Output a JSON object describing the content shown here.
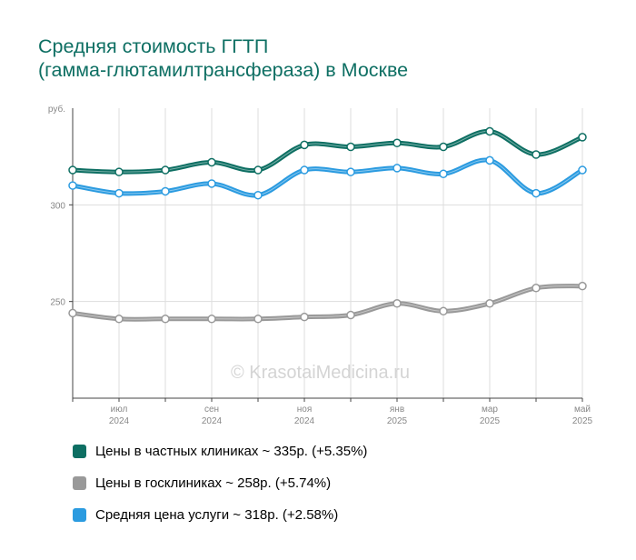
{
  "title": {
    "line1": "Средняя стоимость ГГТП",
    "line2": "(гамма-глютамилтрансфераза) в Москве"
  },
  "watermark": "© KrasotaiMedicina.ru",
  "colors": {
    "private": "#0e6f63",
    "public": "#999999",
    "average": "#2b9be0",
    "title": "#0e6f63",
    "grid": "#dddddd",
    "axis": "#444444"
  },
  "chart_data": {
    "type": "line",
    "ylabel": "руб.",
    "ylim": [
      200,
      350
    ],
    "yticks": [
      {
        "value": 250,
        "label": "250"
      },
      {
        "value": 300,
        "label": "300"
      }
    ],
    "x": [
      0,
      1,
      2,
      3,
      4,
      5,
      6,
      7,
      8,
      9,
      10,
      11
    ],
    "xticks": [
      {
        "x": 1,
        "month": "июл",
        "year": "2024"
      },
      {
        "x": 3,
        "month": "сен",
        "year": "2024"
      },
      {
        "x": 5,
        "month": "ноя",
        "year": "2024"
      },
      {
        "x": 7,
        "month": "янв",
        "year": "2025"
      },
      {
        "x": 9,
        "month": "мар",
        "year": "2025"
      },
      {
        "x": 11,
        "month": "май",
        "year": "2025"
      }
    ],
    "grid": true,
    "legend_position": "bottom",
    "series": [
      {
        "name": "Цены в частных клиниках",
        "color": "#0e6f63",
        "values": [
          318,
          317,
          318,
          322,
          318,
          331,
          330,
          332,
          330,
          338,
          326,
          335
        ]
      },
      {
        "name": "Цены в госклиниках",
        "color": "#999999",
        "values": [
          244,
          241,
          241,
          241,
          241,
          242,
          243,
          249,
          245,
          249,
          257,
          258
        ]
      },
      {
        "name": "Средняя цена услуги",
        "color": "#2b9be0",
        "values": [
          310,
          306,
          307,
          311,
          305,
          318,
          317,
          319,
          316,
          323,
          306,
          318
        ]
      }
    ]
  },
  "legend": [
    {
      "label": "Цены в частных клиниках ~ 335р. (+5.35%)",
      "color": "#0e6f63"
    },
    {
      "label": "Цены в госклиниках ~ 258р. (+5.74%)",
      "color": "#999999"
    },
    {
      "label": "Средняя цена услуги ~ 318р. (+2.58%)",
      "color": "#2b9be0"
    }
  ]
}
